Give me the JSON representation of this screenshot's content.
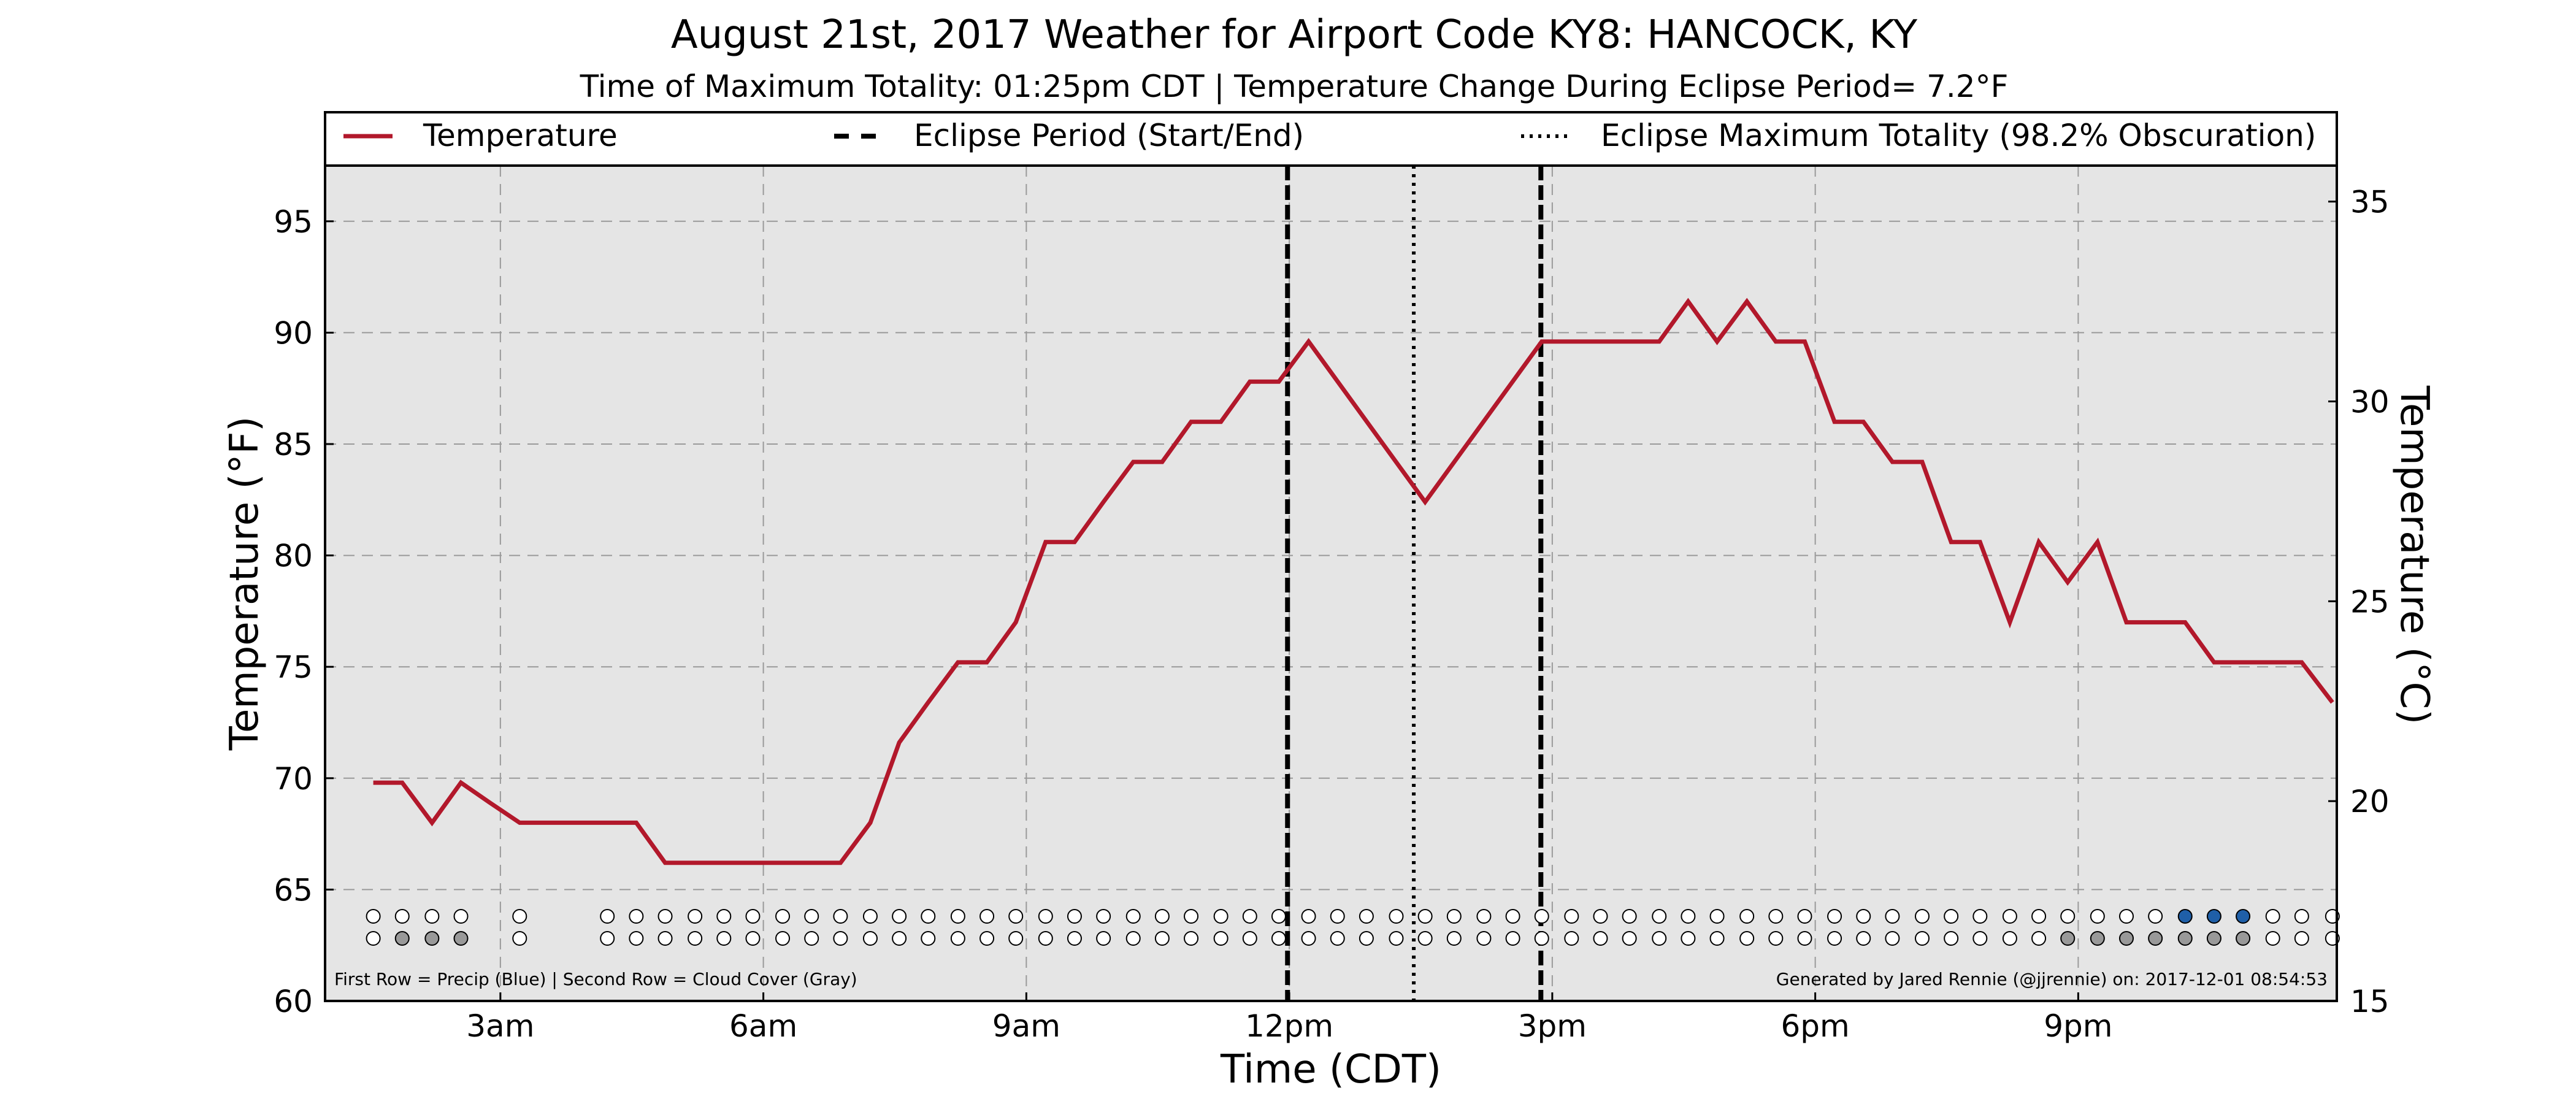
{
  "chart_data": {
    "type": "line",
    "title": "August 21st, 2017 Weather for Airport Code KY8: HANCOCK, KY",
    "subtitle": "Time of Maximum Totality: 01:25pm CDT | Temperature Change During Eclipse Period= 7.2°F",
    "xlabel": "Time (CDT)",
    "ylabel": "Temperature (°F)",
    "ylabel_right": "Temperature (°C)",
    "xlim": [
      1.0,
      23.95
    ],
    "ylim": [
      60,
      97.5
    ],
    "ylim_right": [
      15,
      35.9
    ],
    "grid": true,
    "legend_position": "top",
    "x_ticks": [
      {
        "x": 3,
        "label": "3am"
      },
      {
        "x": 6,
        "label": "6am"
      },
      {
        "x": 9,
        "label": "9am"
      },
      {
        "x": 12,
        "label": "12pm"
      },
      {
        "x": 15,
        "label": "3pm"
      },
      {
        "x": 18,
        "label": "6pm"
      },
      {
        "x": 21,
        "label": "9pm"
      }
    ],
    "y_ticks": [
      60,
      65,
      70,
      75,
      80,
      85,
      90,
      95
    ],
    "y_ticks_right": [
      15,
      20,
      25,
      30,
      35
    ],
    "series": [
      {
        "name": "Temperature",
        "color": "#b2182b",
        "x": [
          1.55,
          1.88,
          2.22,
          2.55,
          2.88,
          3.22,
          3.55,
          3.88,
          4.22,
          4.55,
          4.88,
          5.22,
          5.55,
          5.88,
          6.22,
          6.55,
          6.88,
          7.22,
          7.55,
          7.88,
          8.22,
          8.55,
          8.88,
          9.22,
          9.55,
          9.88,
          10.22,
          10.55,
          10.88,
          11.22,
          11.55,
          11.88,
          12.22,
          13.55,
          14.88,
          15.22,
          15.55,
          15.88,
          16.22,
          16.55,
          16.88,
          17.22,
          17.55,
          17.88,
          18.22,
          18.55,
          18.88,
          19.22,
          19.55,
          19.88,
          20.22,
          20.55,
          20.88,
          21.22,
          21.55,
          21.88,
          22.22,
          22.55,
          22.88,
          23.22,
          23.55,
          23.9
        ],
        "y": [
          69.8,
          69.8,
          68.0,
          69.8,
          68.9,
          68.0,
          68.0,
          68.0,
          68.0,
          68.0,
          66.2,
          66.2,
          66.2,
          66.2,
          66.2,
          66.2,
          66.2,
          68.0,
          71.6,
          73.4,
          75.2,
          75.2,
          77.0,
          80.6,
          80.6,
          82.4,
          84.2,
          84.2,
          86.0,
          86.0,
          87.8,
          87.8,
          89.6,
          82.4,
          89.6,
          89.6,
          89.6,
          89.6,
          89.6,
          91.4,
          89.6,
          91.4,
          89.6,
          89.6,
          86.0,
          86.0,
          84.2,
          84.2,
          80.6,
          80.6,
          77.0,
          80.6,
          78.8,
          80.6,
          77.0,
          77.0,
          77.0,
          75.2,
          75.2,
          75.2,
          75.2,
          73.4
        ]
      }
    ],
    "eclipse_period": {
      "label": "Eclipse Period (Start/End)",
      "start": 11.98,
      "end": 14.87
    },
    "maximum_totality": {
      "label": "Eclipse Maximum Totality (98.2% Obscuration)",
      "x": 13.42
    },
    "indicator_rows": {
      "x": [
        1.55,
        1.88,
        2.22,
        2.55,
        3.22,
        4.22,
        4.55,
        4.88,
        5.22,
        5.55,
        5.88,
        6.22,
        6.55,
        6.88,
        7.22,
        7.55,
        7.88,
        8.22,
        8.55,
        8.88,
        9.22,
        9.55,
        9.88,
        10.22,
        10.55,
        10.88,
        11.22,
        11.55,
        11.88,
        12.22,
        12.55,
        12.88,
        13.22,
        13.55,
        13.88,
        14.22,
        14.55,
        14.88,
        15.22,
        15.55,
        15.88,
        16.22,
        16.55,
        16.88,
        17.22,
        17.55,
        17.88,
        18.22,
        18.55,
        18.88,
        19.22,
        19.55,
        19.88,
        20.22,
        20.55,
        20.88,
        21.22,
        21.55,
        21.88,
        22.22,
        22.55,
        22.88,
        23.22,
        23.55,
        23.9
      ],
      "precip": [
        0,
        0,
        0,
        0,
        0,
        0,
        0,
        0,
        0,
        0,
        0,
        0,
        0,
        0,
        0,
        0,
        0,
        0,
        0,
        0,
        0,
        0,
        0,
        0,
        0,
        0,
        0,
        0,
        0,
        0,
        0,
        0,
        0,
        0,
        0,
        0,
        0,
        0,
        0,
        0,
        0,
        0,
        0,
        0,
        0,
        0,
        0,
        0,
        0,
        0,
        0,
        0,
        0,
        0,
        0,
        0,
        0,
        0,
        0,
        1,
        1,
        1,
        0,
        0,
        0
      ],
      "cloud": [
        0,
        1,
        1,
        1,
        0,
        0,
        0,
        0,
        0,
        0,
        0,
        0,
        0,
        0,
        0,
        0,
        0,
        0,
        0,
        0,
        0,
        0,
        0,
        0,
        0,
        0,
        0,
        0,
        0,
        0,
        0,
        0,
        0,
        0,
        0,
        0,
        0,
        0,
        0,
        0,
        0,
        0,
        0,
        0,
        0,
        0,
        0,
        0,
        0,
        0,
        0,
        0,
        0,
        0,
        0,
        1,
        1,
        1,
        1,
        1,
        1,
        1,
        0,
        0,
        0
      ],
      "precip_color": "#1f5fa8",
      "cloud_color": "#999999",
      "empty_color": "#ffffff",
      "caption": "First Row = Precip (Blue) | Second Row = Cloud Cover (Gray)"
    },
    "credit": "Generated by Jared Rennie (@jjrennie) on: 2017-12-01 08:54:53",
    "plot_background": "#e5e5e5"
  }
}
